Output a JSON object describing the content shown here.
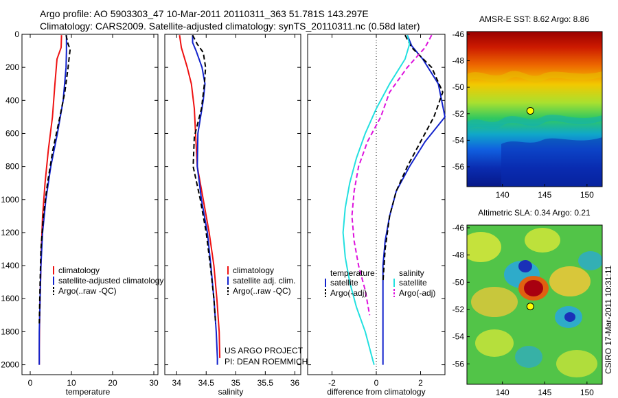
{
  "header": {
    "line1": "Argo profile: AO 5903303_47 10-Mar-2011 20110311_363 51.781S 143.297E",
    "line2": "Climatology: CARS2009. Satellite-adjusted climatology: synTS_20110311.nc (0.58d later)"
  },
  "credits": {
    "project": "US ARGO PROJECT",
    "pi": "PI: DEAN ROEMMICH",
    "side": "CSIRO 17-Mar-2011 10:31:11"
  },
  "colors": {
    "red": "#ee1111",
    "blue": "#1122cc",
    "black": "#000000",
    "cyan": "#22e0e0",
    "magenta": "#dd11dd"
  },
  "chart_data": [
    {
      "type": "line",
      "xlabel": "temperature",
      "xlim": [
        -2,
        31
      ],
      "xticks": [
        0,
        10,
        20,
        30
      ],
      "ylim": [
        2060,
        0
      ],
      "yticks": [
        0,
        200,
        400,
        600,
        800,
        1000,
        1200,
        1400,
        1600,
        1800,
        2000
      ],
      "legend": {
        "placement": "lower-middle",
        "entries": [
          "climatology",
          "satellite-adjusted climatology",
          "Argo(..raw -QC)"
        ]
      },
      "series": [
        {
          "name": "climatology",
          "color": "red",
          "dash": false,
          "x": [
            7.6,
            7.5,
            6.5,
            6.0,
            5.4,
            4.4,
            3.6,
            3.0,
            2.7,
            2.5,
            2.3,
            2.2,
            2.2
          ],
          "y": [
            5,
            80,
            150,
            300,
            500,
            700,
            900,
            1100,
            1300,
            1500,
            1700,
            1900,
            2000
          ]
        },
        {
          "name": "satellite-adjusted climatology",
          "color": "blue",
          "dash": false,
          "x": [
            8.8,
            8.8,
            8.8,
            8.7,
            8.0,
            6.6,
            5.0,
            3.8,
            3.0,
            2.6,
            2.4,
            2.2,
            2.2,
            2.2
          ],
          "y": [
            5,
            50,
            100,
            200,
            400,
            600,
            800,
            1000,
            1200,
            1400,
            1600,
            1800,
            1900,
            2000
          ]
        },
        {
          "name": "Argo(..raw -QC)",
          "color": "black",
          "dash": true,
          "x": [
            8.7,
            9.2,
            9.7,
            9.5,
            9.2,
            8.4,
            7.2,
            5.5,
            4.2,
            3.2,
            2.6,
            2.4,
            2.2
          ],
          "y": [
            5,
            60,
            90,
            130,
            200,
            350,
            500,
            700,
            900,
            1100,
            1300,
            1500,
            1750
          ]
        }
      ]
    },
    {
      "type": "line",
      "xlabel": "salinity",
      "xlim": [
        33.8,
        36.1
      ],
      "xticks": [
        34,
        34.5,
        35,
        35.5,
        36
      ],
      "ylim": [
        2060,
        0
      ],
      "yticks": [],
      "legend": {
        "placement": "lower-middle",
        "entries": [
          "climatology",
          "satellite adj. clim.",
          "Argo(..raw -QC)"
        ]
      },
      "series": [
        {
          "name": "climatology",
          "color": "red",
          "dash": false,
          "x": [
            34.05,
            34.08,
            34.18,
            34.25,
            34.3,
            34.32,
            34.35,
            34.45,
            34.55,
            34.63,
            34.68,
            34.72,
            34.73
          ],
          "y": [
            5,
            80,
            200,
            300,
            450,
            600,
            800,
            1000,
            1200,
            1400,
            1600,
            1800,
            1960
          ]
        },
        {
          "name": "satellite adj. clim.",
          "color": "blue",
          "dash": false,
          "x": [
            34.27,
            34.27,
            34.33,
            34.43,
            34.48,
            34.45,
            34.36,
            34.35,
            34.42,
            34.52,
            34.58,
            34.63,
            34.67,
            34.69,
            34.69
          ],
          "y": [
            5,
            50,
            100,
            200,
            300,
            400,
            600,
            800,
            1000,
            1200,
            1400,
            1600,
            1800,
            1960,
            2000
          ]
        },
        {
          "name": "Argo(..raw -QC)",
          "color": "black",
          "dash": true,
          "x": [
            34.27,
            34.35,
            34.45,
            34.49,
            34.47,
            34.42,
            34.3,
            34.28,
            34.4,
            34.5,
            34.57,
            34.63,
            34.66
          ],
          "y": [
            5,
            60,
            110,
            200,
            300,
            450,
            620,
            800,
            1000,
            1200,
            1400,
            1600,
            1750
          ]
        }
      ]
    },
    {
      "type": "line",
      "xlabel": "difference from climatology",
      "xlim": [
        -3.1,
        3.1
      ],
      "xticks": [
        -2,
        0,
        2
      ],
      "ylim": [
        2060,
        0
      ],
      "yticks": [],
      "zero_line": true,
      "legend": {
        "placement": "lower-middle",
        "titles": [
          "temperature",
          "salinity"
        ],
        "entries": [
          "satellite",
          "Argo(-adj)",
          "satellite",
          "Argo(-adj)"
        ]
      },
      "series": [
        {
          "name": "temperature satellite",
          "color": "blue",
          "dash": false,
          "x": [
            1.4,
            1.6,
            2.1,
            2.8,
            3.1,
            2.2,
            1.5,
            0.9,
            0.6,
            0.4,
            0.3,
            0.3,
            0.3,
            0.3
          ],
          "y": [
            5,
            70,
            150,
            300,
            500,
            650,
            800,
            950,
            1100,
            1250,
            1400,
            1600,
            1800,
            2000
          ]
        },
        {
          "name": "temperature Argo(-adj)",
          "color": "black",
          "dash": true,
          "x": [
            1.3,
            1.6,
            2.5,
            3.0,
            2.6,
            2.0,
            1.4,
            0.9,
            0.6,
            0.4,
            0.3
          ],
          "y": [
            5,
            80,
            200,
            350,
            500,
            650,
            800,
            950,
            1100,
            1300,
            1500
          ]
        },
        {
          "name": "salinity satellite",
          "color": "cyan",
          "dash": false,
          "x": [
            1.4,
            1.5,
            1.3,
            0.6,
            0.0,
            -0.5,
            -0.9,
            -1.2,
            -1.4,
            -1.5,
            -1.4,
            -1.2,
            -0.9,
            -0.5,
            -0.2,
            -0.1
          ],
          "y": [
            5,
            60,
            150,
            300,
            450,
            600,
            750,
            900,
            1050,
            1200,
            1350,
            1500,
            1650,
            1800,
            1950,
            2000
          ]
        },
        {
          "name": "salinity Argo(-adj)",
          "color": "magenta",
          "dash": true,
          "x": [
            2.5,
            2.2,
            1.4,
            0.6,
            0.2,
            -0.4,
            -0.8,
            -1.0,
            -1.1,
            -1.0,
            -0.8,
            -0.5,
            -0.3
          ],
          "y": [
            5,
            80,
            200,
            350,
            500,
            650,
            800,
            950,
            1100,
            1250,
            1400,
            1550,
            1700
          ]
        }
      ]
    },
    {
      "type": "heatmap",
      "title": "AMSR-E SST: 8.62 Argo: 8.86",
      "xlim": [
        135.8,
        151.8
      ],
      "xticks": [
        140,
        145,
        150
      ],
      "ylim": [
        -57.5,
        -45.8
      ],
      "yticks": [
        -46,
        -48,
        -50,
        -52,
        -54,
        -56
      ],
      "marker": {
        "lon": 143.297,
        "lat": -51.781
      }
    },
    {
      "type": "heatmap",
      "title": "Altimetric SLA: 0.34 Argo: 0.21",
      "xlim": [
        135.8,
        151.8
      ],
      "xticks": [
        140,
        145,
        150
      ],
      "ylim": [
        -57.5,
        -45.8
      ],
      "yticks": [
        -46,
        -48,
        -50,
        -52,
        -54,
        -56
      ],
      "marker": {
        "lon": 143.297,
        "lat": -51.781
      }
    }
  ]
}
